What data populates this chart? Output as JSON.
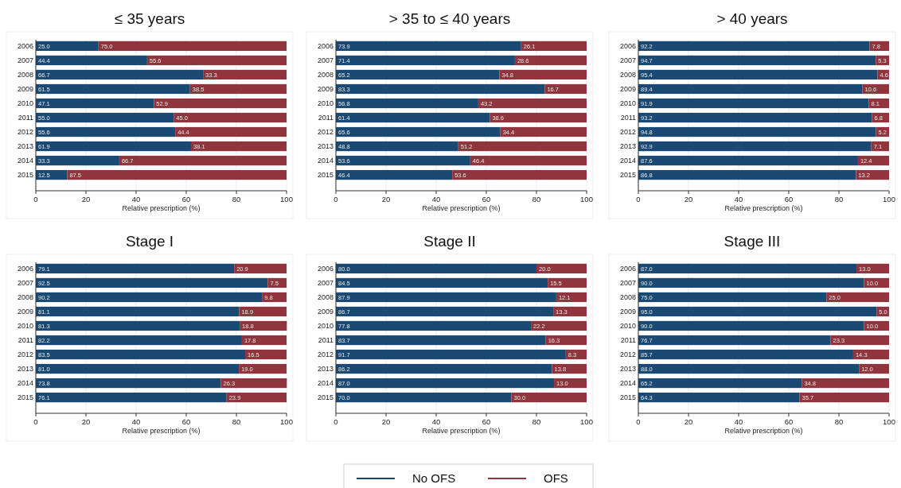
{
  "chart_data": [
    {
      "type": "bar",
      "orientation": "horizontal",
      "stacked": true,
      "title": "≤ 35 years",
      "xlabel": "Relative prescription (%)",
      "categories": [
        "2006",
        "2007",
        "2008",
        "2009",
        "2010",
        "2011",
        "2012",
        "2013",
        "2014",
        "2015"
      ],
      "xlim": [
        0,
        100
      ],
      "xticks": [
        0,
        20,
        40,
        60,
        80,
        100
      ],
      "grid": "x",
      "legend": "bottom",
      "series": [
        {
          "name": "No OFS",
          "color": "#1a4a73",
          "values": [
            25.0,
            44.4,
            66.7,
            61.5,
            47.1,
            55.0,
            55.6,
            61.9,
            33.3,
            12.5
          ],
          "value_labels": [
            "25.0",
            "44.4",
            "66.7",
            "61.5",
            "47.1",
            "55.0",
            "55.6",
            "61.9",
            "33.3",
            "12.5"
          ]
        },
        {
          "name": "OFS",
          "color": "#90353d",
          "values": [
            75.0,
            55.6,
            33.3,
            38.5,
            52.9,
            45.0,
            44.4,
            38.1,
            66.7,
            87.5
          ],
          "value_labels": [
            "75.0",
            "55.6",
            "33.3",
            "38.5",
            "52.9",
            "45.0",
            "44.4",
            "38.1",
            "66.7",
            "87.5"
          ]
        }
      ]
    },
    {
      "type": "bar",
      "orientation": "horizontal",
      "stacked": true,
      "title": "> 35 to ≤ 40 years",
      "xlabel": "Relative prescription (%)",
      "categories": [
        "2006",
        "2007",
        "2008",
        "2009",
        "2010",
        "2011",
        "2012",
        "2013",
        "2014",
        "2015"
      ],
      "xlim": [
        0,
        100
      ],
      "xticks": [
        0,
        20,
        40,
        60,
        80,
        100
      ],
      "grid": "x",
      "series": [
        {
          "color": "#1a4a73",
          "values": [
            73.9,
            71.4,
            65.2,
            83.3,
            56.8,
            61.4,
            65.6,
            48.8,
            53.6,
            46.4
          ],
          "value_labels": [
            "73.9",
            "71.4",
            "65.2",
            "83.3",
            "56.8",
            "61.4",
            "65.6",
            "48.8",
            "53.6",
            "46.4"
          ]
        },
        {
          "color": "#90353d",
          "values": [
            26.1,
            28.6,
            34.8,
            16.7,
            43.2,
            38.6,
            34.4,
            51.2,
            46.4,
            53.6
          ],
          "value_labels": [
            "26.1",
            "28.6",
            "34.8",
            "16.7",
            "43.2",
            "38.6",
            "34.4",
            "51.2",
            "46.4",
            "53.6"
          ]
        }
      ]
    },
    {
      "type": "bar",
      "orientation": "horizontal",
      "stacked": true,
      "title": "> 40 years",
      "xlabel": "Relative prescription (%)",
      "categories": [
        "2006",
        "2007",
        "2008",
        "2009",
        "2010",
        "2011",
        "2012",
        "2013",
        "2014",
        "2015"
      ],
      "xlim": [
        0,
        100
      ],
      "xticks": [
        0,
        20,
        40,
        60,
        80,
        100
      ],
      "grid": "x",
      "series": [
        {
          "color": "#1a4a73",
          "values": [
            92.2,
            94.7,
            95.4,
            89.4,
            91.9,
            93.2,
            94.8,
            92.9,
            87.6,
            86.8
          ],
          "value_labels": [
            "92.2",
            "94.7",
            "95.4",
            "89.4",
            "91.9",
            "93.2",
            "94.8",
            "92.9",
            "87.6",
            "86.8"
          ]
        },
        {
          "color": "#90353d",
          "values": [
            7.8,
            5.3,
            4.6,
            10.6,
            8.1,
            6.8,
            5.2,
            7.1,
            12.4,
            13.2
          ],
          "value_labels": [
            "7.8",
            "5.3",
            "4.6",
            "10.6",
            "8.1",
            "6.8",
            "5.2",
            "7.1",
            "12.4",
            "13.2"
          ]
        }
      ]
    },
    {
      "type": "bar",
      "orientation": "horizontal",
      "stacked": true,
      "title": "Stage I",
      "xlabel": "Relative prescription (%)",
      "categories": [
        "2006",
        "2007",
        "2008",
        "2009",
        "2010",
        "2011",
        "2012",
        "2013",
        "2014",
        "2015"
      ],
      "xlim": [
        0,
        100
      ],
      "xticks": [
        0,
        20,
        40,
        60,
        80,
        100
      ],
      "grid": "x",
      "series": [
        {
          "color": "#1a4a73",
          "values": [
            79.1,
            92.5,
            90.2,
            81.1,
            81.3,
            82.2,
            83.5,
            81.0,
            73.8,
            76.1
          ],
          "value_labels": [
            "79.1",
            "92.5",
            "90.2",
            "81.1",
            "81.3",
            "82.2",
            "83.5",
            "81.0",
            "73.8",
            "76.1"
          ]
        },
        {
          "color": "#90353d",
          "values": [
            20.9,
            7.5,
            9.8,
            18.9,
            18.8,
            17.8,
            16.5,
            19.0,
            26.3,
            23.9
          ],
          "value_labels": [
            "20.9",
            "7.5",
            "9.8",
            "18.9",
            "18.8",
            "17.8",
            "16.5",
            "19.0",
            "26.3",
            "23.9"
          ]
        }
      ]
    },
    {
      "type": "bar",
      "orientation": "horizontal",
      "stacked": true,
      "title": "Stage II",
      "xlabel": "Relative prescription (%)",
      "categories": [
        "2006",
        "2007",
        "2008",
        "2009",
        "2010",
        "2011",
        "2012",
        "2013",
        "2014",
        "2015"
      ],
      "xlim": [
        0,
        100
      ],
      "xticks": [
        0,
        20,
        40,
        60,
        80,
        100
      ],
      "grid": "x",
      "series": [
        {
          "color": "#1a4a73",
          "values": [
            80.0,
            84.5,
            87.9,
            86.7,
            77.8,
            83.7,
            91.7,
            86.2,
            87.0,
            70.0
          ],
          "value_labels": [
            "80.0",
            "84.5",
            "87.9",
            "86.7",
            "77.8",
            "83.7",
            "91.7",
            "86.2",
            "87.0",
            "70.0"
          ]
        },
        {
          "color": "#90353d",
          "values": [
            20.0,
            15.5,
            12.1,
            13.3,
            22.2,
            16.3,
            8.3,
            13.8,
            13.0,
            30.0
          ],
          "value_labels": [
            "20.0",
            "15.5",
            "12.1",
            "13.3",
            "22.2",
            "16.3",
            "8.3",
            "13.8",
            "13.0",
            "30.0"
          ]
        }
      ]
    },
    {
      "type": "bar",
      "orientation": "horizontal",
      "stacked": true,
      "title": "Stage III",
      "xlabel": "Relative prescription (%)",
      "categories": [
        "2006",
        "2007",
        "2008",
        "2009",
        "2010",
        "2011",
        "2012",
        "2013",
        "2014",
        "2015"
      ],
      "xlim": [
        0,
        100
      ],
      "xticks": [
        0,
        20,
        40,
        60,
        80,
        100
      ],
      "grid": "x",
      "series": [
        {
          "color": "#1a4a73",
          "values": [
            87.0,
            90.0,
            75.0,
            95.0,
            90.0,
            76.7,
            85.7,
            88.0,
            65.2,
            64.3
          ],
          "value_labels": [
            "87.0",
            "90.0",
            "75.0",
            "95.0",
            "90.0",
            "76.7",
            "85.7",
            "88.0",
            "65.2",
            "64.3"
          ]
        },
        {
          "color": "#90353d",
          "values": [
            13.0,
            10.0,
            25.0,
            5.0,
            10.0,
            23.3,
            14.3,
            12.0,
            34.8,
            35.7
          ],
          "value_labels": [
            "13.0",
            "10.0",
            "25.0",
            "5.0",
            "10.0",
            "23.3",
            "14.3",
            "12.0",
            "34.8",
            "35.7"
          ]
        }
      ]
    }
  ]
}
